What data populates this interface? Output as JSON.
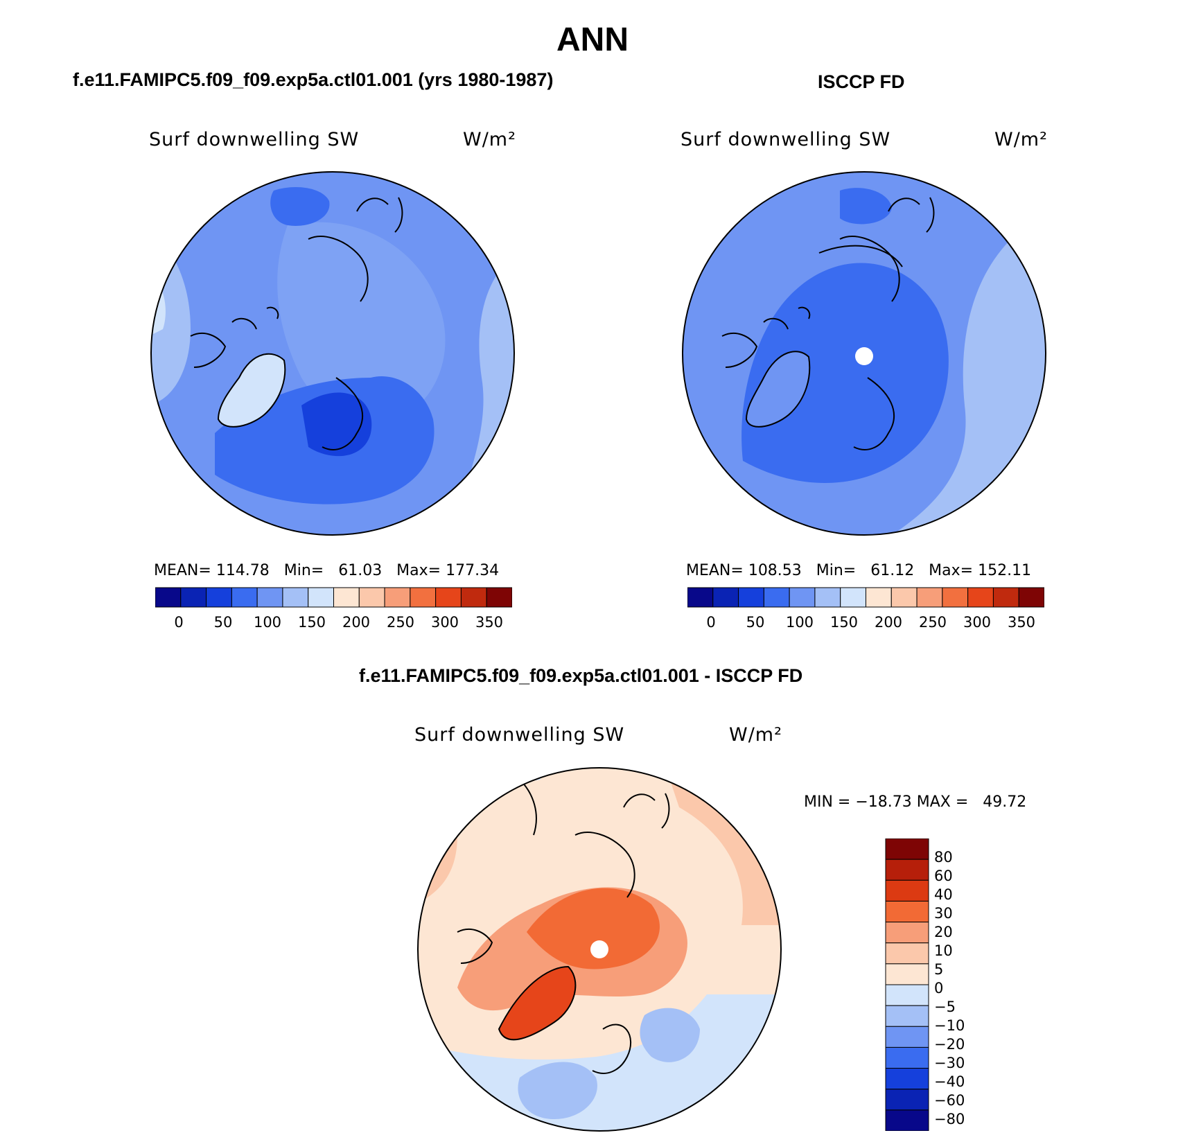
{
  "title": "ANN",
  "panels": [
    {
      "title": "f.e11.FAMIPC5.f09_f09.exp5a.ctl01.001 (yrs 1980-1987)",
      "variable": "Surf downwelling SW",
      "units": "W/m²",
      "stats": "MEAN= 114.78   Min=   61.03   Max= 177.34",
      "colorbar_labels": [
        "0",
        "50",
        "100",
        "150",
        "200",
        "250",
        "300",
        "350"
      ]
    },
    {
      "title": "ISCCP FD",
      "variable": "Surf downwelling SW",
      "units": "W/m²",
      "stats": "MEAN= 108.53   Min=   61.12   Max= 152.11",
      "colorbar_labels": [
        "0",
        "50",
        "100",
        "150",
        "200",
        "250",
        "300",
        "350"
      ]
    },
    {
      "title": "f.e11.FAMIPC5.f09_f09.exp5a.ctl01.001 - ISCCP FD",
      "variable": "Surf downwelling SW",
      "units": "W/m²",
      "stats": "MIN = −18.73 MAX =   49.72",
      "colorbar_labels": [
        "80",
        "60",
        "40",
        "30",
        "20",
        "10",
        "5",
        "0",
        "−5",
        "−10",
        "−20",
        "−30",
        "−40",
        "−60",
        "−80"
      ]
    }
  ],
  "colors": {
    "abs_scale": [
      "#08088a",
      "#0a23b4",
      "#1540dc",
      "#3a6cf0",
      "#6f95f3",
      "#a4c0f6",
      "#d2e4fb",
      "#fde6d3",
      "#fbc8ab",
      "#f79e79",
      "#f2703f",
      "#e6451a",
      "#c02a0e",
      "#7e0505"
    ],
    "diff_scale": [
      "#7e0505",
      "#b61f0a",
      "#dc3a12",
      "#f26a35",
      "#f79e79",
      "#fbc8ab",
      "#fde6d3",
      "#d2e4fb",
      "#a4c0f6",
      "#6f95f3",
      "#3a6cf0",
      "#1540dc",
      "#0a23b4",
      "#08088a"
    ]
  }
}
